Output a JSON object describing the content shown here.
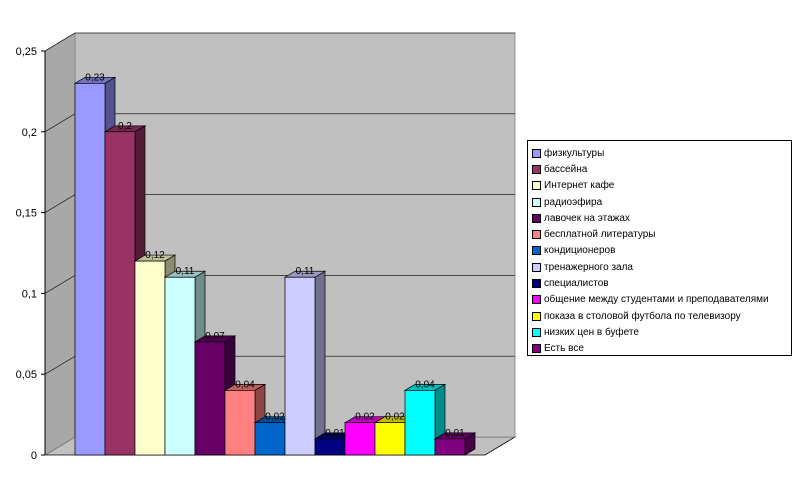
{
  "chart_data": {
    "type": "bar",
    "title": "",
    "xlabel": "",
    "ylabel": "",
    "ylim": [
      0,
      0.25
    ],
    "y_ticks": [
      "0",
      "0,05",
      "0,1",
      "0,15",
      "0,2",
      "0,25"
    ],
    "grid": true,
    "legend_position": "right",
    "series": [
      {
        "name": "физкультуры",
        "value": 0.23,
        "label": "0,23",
        "color": "#9999ff"
      },
      {
        "name": "бассейна",
        "value": 0.2,
        "label": "0,2",
        "color": "#993366"
      },
      {
        "name": "Интернет кафе",
        "value": 0.12,
        "label": "0,12",
        "color": "#ffffcc"
      },
      {
        "name": "радиоэфира",
        "value": 0.11,
        "label": "0,11",
        "color": "#ccffff"
      },
      {
        "name": "лавочек на этажах",
        "value": 0.07,
        "label": "0,07",
        "color": "#660066"
      },
      {
        "name": "бесплатной литературы",
        "value": 0.04,
        "label": "0,04",
        "color": "#ff8080"
      },
      {
        "name": "кондиционеров",
        "value": 0.02,
        "label": "0,02",
        "color": "#0066cc"
      },
      {
        "name": "тренажерного зала",
        "value": 0.11,
        "label": "0,11",
        "color": "#ccccff"
      },
      {
        "name": "специалистов",
        "value": 0.01,
        "label": "0,01",
        "color": "#000080"
      },
      {
        "name": "общение между студентами и преподавателями",
        "value": 0.02,
        "label": "0,02",
        "color": "#ff00ff"
      },
      {
        "name": "показа в столовой футбола по телевизору",
        "value": 0.02,
        "label": "0,02",
        "color": "#ffff00"
      },
      {
        "name": "низких цен в буфете",
        "value": 0.04,
        "label": "0,04",
        "color": "#00ffff"
      },
      {
        "name": "Есть все",
        "value": 0.01,
        "label": "0,01",
        "color": "#800080"
      }
    ]
  }
}
